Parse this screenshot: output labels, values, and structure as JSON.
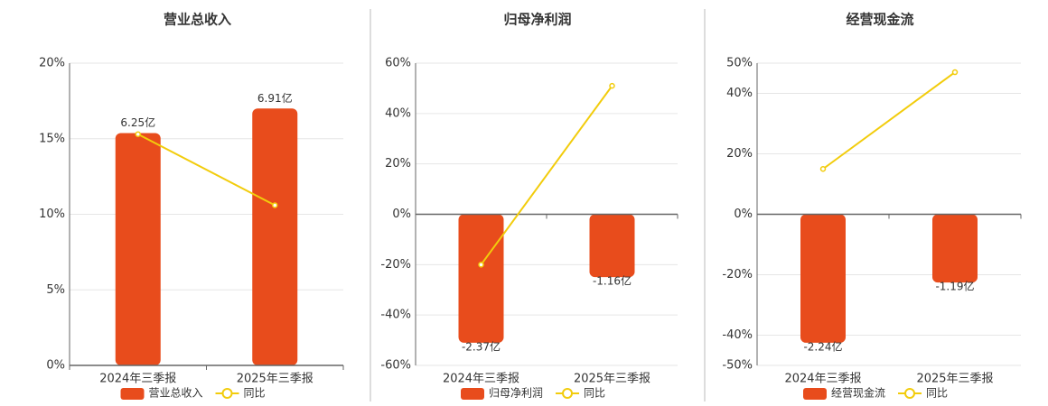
{
  "chart_data": [
    {
      "type": "bar",
      "title": "营业总收入",
      "categories": [
        "2024年三季报",
        "2025年三季报"
      ],
      "series": [
        {
          "name": "营业总收入",
          "type": "bar",
          "color": "#e84c1c",
          "values": [
            6.25,
            6.91
          ],
          "value_labels": [
            "6.25亿",
            "6.91亿"
          ]
        },
        {
          "name": "同比",
          "type": "line",
          "color": "#f2cc0c",
          "values": [
            15.3,
            10.6
          ]
        }
      ],
      "ylim": [
        0,
        20
      ],
      "yticks": [
        {
          "value": 0,
          "label": "0%"
        },
        {
          "value": 5,
          "label": "5%"
        },
        {
          "value": 10,
          "label": "10%"
        },
        {
          "value": 15,
          "label": "15%"
        },
        {
          "value": 20,
          "label": "20%"
        }
      ],
      "grid": true
    },
    {
      "type": "bar",
      "title": "归母净利润",
      "categories": [
        "2024年三季报",
        "2025年三季报"
      ],
      "series": [
        {
          "name": "归母净利润",
          "type": "bar",
          "color": "#e84c1c",
          "values": [
            -2.37,
            -1.16
          ],
          "value_labels": [
            "-2.37亿",
            "-1.16亿"
          ]
        },
        {
          "name": "同比",
          "type": "line",
          "color": "#f2cc0c",
          "values": [
            -20,
            51
          ]
        }
      ],
      "ylim": [
        -60,
        60
      ],
      "yticks": [
        {
          "value": -60,
          "label": "-60%"
        },
        {
          "value": -40,
          "label": "-40%"
        },
        {
          "value": -20,
          "label": "-20%"
        },
        {
          "value": 0,
          "label": "0%"
        },
        {
          "value": 20,
          "label": "20%"
        },
        {
          "value": 40,
          "label": "40%"
        },
        {
          "value": 60,
          "label": "60%"
        }
      ],
      "grid": true
    },
    {
      "type": "bar",
      "title": "经营现金流",
      "categories": [
        "2024年三季报",
        "2025年三季报"
      ],
      "series": [
        {
          "name": "经营现金流",
          "type": "bar",
          "color": "#e84c1c",
          "values": [
            -2.24,
            -1.19
          ],
          "value_labels": [
            "-2.24亿",
            "-1.19亿"
          ]
        },
        {
          "name": "同比",
          "type": "line",
          "color": "#f2cc0c",
          "values": [
            15,
            47
          ]
        }
      ],
      "ylim": [
        -50,
        50
      ],
      "yticks": [
        {
          "value": -50,
          "label": "-50%"
        },
        {
          "value": -40,
          "label": "-40%"
        },
        {
          "value": -20,
          "label": "-20%"
        },
        {
          "value": 0,
          "label": "0%"
        },
        {
          "value": 20,
          "label": "20%"
        },
        {
          "value": 40,
          "label": "40%"
        },
        {
          "value": 50,
          "label": "50%"
        }
      ],
      "grid": true
    }
  ]
}
